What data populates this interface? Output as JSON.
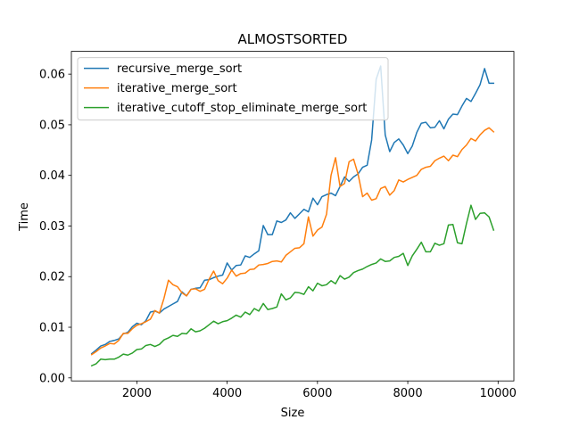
{
  "chart_data": {
    "type": "line",
    "title": "ALMOSTSORTED",
    "xlabel": "Size",
    "ylabel": "Time",
    "xlim": [
      550,
      10350
    ],
    "ylim": [
      -0.0006,
      0.0645
    ],
    "xticks": [
      2000,
      4000,
      6000,
      8000,
      10000
    ],
    "yticks": [
      0.0,
      0.01,
      0.02,
      0.03,
      0.04,
      0.05,
      0.06
    ],
    "xtick_labels": [
      "2000",
      "4000",
      "6000",
      "8000",
      "10000"
    ],
    "ytick_labels": [
      "0.00",
      "0.01",
      "0.02",
      "0.03",
      "0.04",
      "0.05",
      "0.06"
    ],
    "grid": false,
    "legend_position": "top-left",
    "x": [
      1000,
      1100,
      1200,
      1300,
      1400,
      1500,
      1600,
      1700,
      1800,
      1900,
      2000,
      2100,
      2200,
      2300,
      2400,
      2500,
      2600,
      2700,
      2800,
      2900,
      3000,
      3100,
      3200,
      3300,
      3400,
      3500,
      3600,
      3700,
      3800,
      3900,
      4000,
      4100,
      4200,
      4300,
      4400,
      4500,
      4600,
      4700,
      4800,
      4900,
      5000,
      5100,
      5200,
      5300,
      5400,
      5500,
      5600,
      5700,
      5800,
      5900,
      6000,
      6100,
      6200,
      6300,
      6400,
      6500,
      6600,
      6700,
      6800,
      6900,
      7000,
      7100,
      7200,
      7300,
      7400,
      7500,
      7600,
      7700,
      7800,
      7900,
      8000,
      8100,
      8200,
      8300,
      8400,
      8500,
      8600,
      8700,
      8800,
      8900,
      9000,
      9100,
      9200,
      9300,
      9400,
      9500,
      9600,
      9700,
      9800,
      9900
    ],
    "series": [
      {
        "name": "recursive_merge_sort",
        "color": "#1f77b4",
        "values": [
          0.0048,
          0.0055,
          0.0063,
          0.0066,
          0.0072,
          0.0074,
          0.0077,
          0.0087,
          0.009,
          0.0101,
          0.0108,
          0.0105,
          0.0113,
          0.013,
          0.0132,
          0.0128,
          0.0136,
          0.0141,
          0.0146,
          0.0151,
          0.017,
          0.0162,
          0.0175,
          0.0177,
          0.0178,
          0.0193,
          0.0194,
          0.0198,
          0.0201,
          0.0203,
          0.0227,
          0.0213,
          0.0222,
          0.0223,
          0.0241,
          0.0238,
          0.0245,
          0.0251,
          0.0301,
          0.0283,
          0.0283,
          0.031,
          0.0307,
          0.0312,
          0.0326,
          0.0315,
          0.0324,
          0.0333,
          0.0328,
          0.0355,
          0.0342,
          0.0358,
          0.0362,
          0.0365,
          0.036,
          0.0378,
          0.0397,
          0.0388,
          0.0397,
          0.0403,
          0.0416,
          0.042,
          0.047,
          0.059,
          0.0616,
          0.048,
          0.0447,
          0.0465,
          0.0472,
          0.046,
          0.0443,
          0.0458,
          0.0485,
          0.0503,
          0.0505,
          0.0494,
          0.0495,
          0.0508,
          0.0492,
          0.0511,
          0.0521,
          0.052,
          0.0537,
          0.0552,
          0.0546,
          0.0562,
          0.0579,
          0.0611,
          0.0582,
          0.0582
        ]
      },
      {
        "name": "iterative_merge_sort",
        "color": "#ff7f0e",
        "values": [
          0.0046,
          0.0052,
          0.0059,
          0.0063,
          0.0068,
          0.0067,
          0.0074,
          0.0088,
          0.0088,
          0.0097,
          0.0104,
          0.0107,
          0.0111,
          0.0116,
          0.0133,
          0.0128,
          0.0157,
          0.0193,
          0.0184,
          0.018,
          0.0168,
          0.0162,
          0.0175,
          0.0176,
          0.0171,
          0.0175,
          0.0195,
          0.0211,
          0.0192,
          0.0186,
          0.0197,
          0.0213,
          0.0201,
          0.0206,
          0.0207,
          0.0214,
          0.0215,
          0.0223,
          0.0224,
          0.0226,
          0.023,
          0.0231,
          0.0229,
          0.0242,
          0.0249,
          0.0256,
          0.0257,
          0.0265,
          0.0318,
          0.028,
          0.0292,
          0.0298,
          0.0323,
          0.04,
          0.0435,
          0.0378,
          0.0384,
          0.0427,
          0.0432,
          0.0402,
          0.0358,
          0.0365,
          0.0351,
          0.0354,
          0.0374,
          0.0378,
          0.0361,
          0.037,
          0.0391,
          0.0387,
          0.0392,
          0.0396,
          0.04,
          0.0412,
          0.0416,
          0.0418,
          0.0429,
          0.0434,
          0.0438,
          0.0429,
          0.044,
          0.0437,
          0.0451,
          0.046,
          0.0473,
          0.0468,
          0.048,
          0.0489,
          0.0494,
          0.0486
        ]
      },
      {
        "name": "iterative_cutoff_stop_eliminate_merge_sort",
        "color": "#2ca02c",
        "values": [
          0.0024,
          0.0028,
          0.0037,
          0.0036,
          0.0037,
          0.0037,
          0.0041,
          0.0047,
          0.0045,
          0.0049,
          0.0056,
          0.0057,
          0.0064,
          0.0066,
          0.0062,
          0.0066,
          0.0075,
          0.0079,
          0.0084,
          0.0082,
          0.0088,
          0.0087,
          0.0097,
          0.0091,
          0.0093,
          0.0098,
          0.0105,
          0.0112,
          0.0107,
          0.0111,
          0.0113,
          0.0118,
          0.0124,
          0.012,
          0.013,
          0.0125,
          0.0137,
          0.0132,
          0.0147,
          0.0135,
          0.0137,
          0.014,
          0.0166,
          0.0154,
          0.0158,
          0.0169,
          0.0168,
          0.0165,
          0.018,
          0.0172,
          0.0187,
          0.0182,
          0.0184,
          0.0192,
          0.0186,
          0.0202,
          0.0195,
          0.0199,
          0.0208,
          0.0212,
          0.0215,
          0.022,
          0.0224,
          0.0227,
          0.0235,
          0.023,
          0.0231,
          0.0238,
          0.024,
          0.0246,
          0.0222,
          0.0241,
          0.0254,
          0.0268,
          0.0249,
          0.0249,
          0.0266,
          0.0262,
          0.0265,
          0.0302,
          0.0303,
          0.0267,
          0.0265,
          0.0305,
          0.0341,
          0.0313,
          0.0325,
          0.0326,
          0.0318,
          0.0292
        ]
      }
    ]
  }
}
